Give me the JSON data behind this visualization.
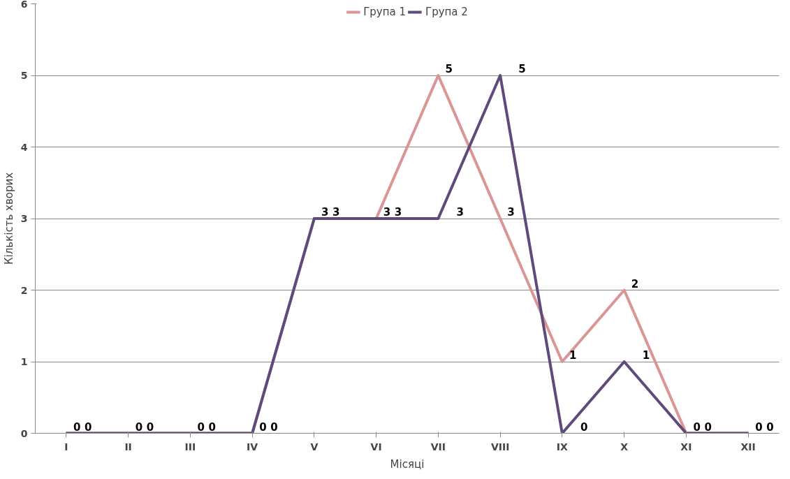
{
  "chart_data": {
    "type": "line",
    "xlabel": "Місяці",
    "ylabel": "Кількість хворих",
    "categories": [
      "I",
      "II",
      "III",
      "IV",
      "V",
      "VI",
      "VII",
      "VIII",
      "IX",
      "X",
      "XI",
      "XII"
    ],
    "series": [
      {
        "name": "Група 1",
        "color": "#d99694",
        "values": [
          0,
          0,
          0,
          0,
          3,
          3,
          5,
          3,
          1,
          2,
          0,
          0
        ]
      },
      {
        "name": "Група 2",
        "color": "#604a7b",
        "values": [
          0,
          0,
          0,
          0,
          3,
          3,
          3,
          5,
          0,
          1,
          0,
          0
        ]
      }
    ],
    "ylim": [
      0,
      6
    ],
    "yticks": [
      0,
      1,
      2,
      3,
      4,
      5,
      6
    ],
    "grid": "y",
    "legend": "top",
    "data_labels": true,
    "marker": "none",
    "line_style": "solid"
  }
}
